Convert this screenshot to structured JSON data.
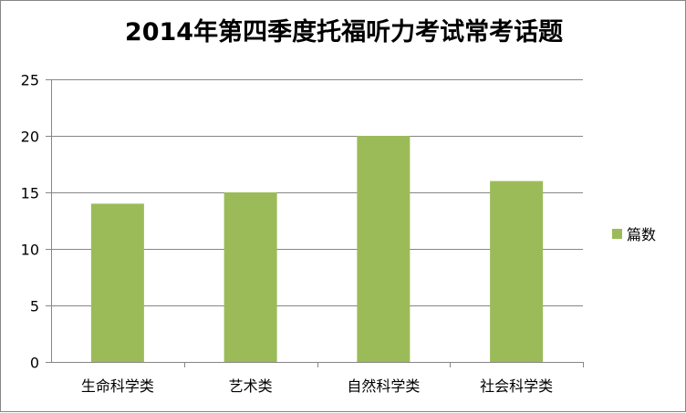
{
  "chart_data": {
    "type": "bar",
    "title": "2014年第四季度托福听力考试常考话题",
    "categories": [
      "生命科学类",
      "艺术类",
      "自然科学类",
      "社会科学类"
    ],
    "series": [
      {
        "name": "篇数",
        "values": [
          14,
          15,
          20,
          16
        ],
        "color": "#9BBB59"
      }
    ],
    "ylim": [
      0,
      25
    ],
    "yticks": [
      0,
      5,
      10,
      15,
      20,
      25
    ],
    "grid": true,
    "legend": "right",
    "gridline_color": "#868686",
    "axis_color": "#868686"
  }
}
